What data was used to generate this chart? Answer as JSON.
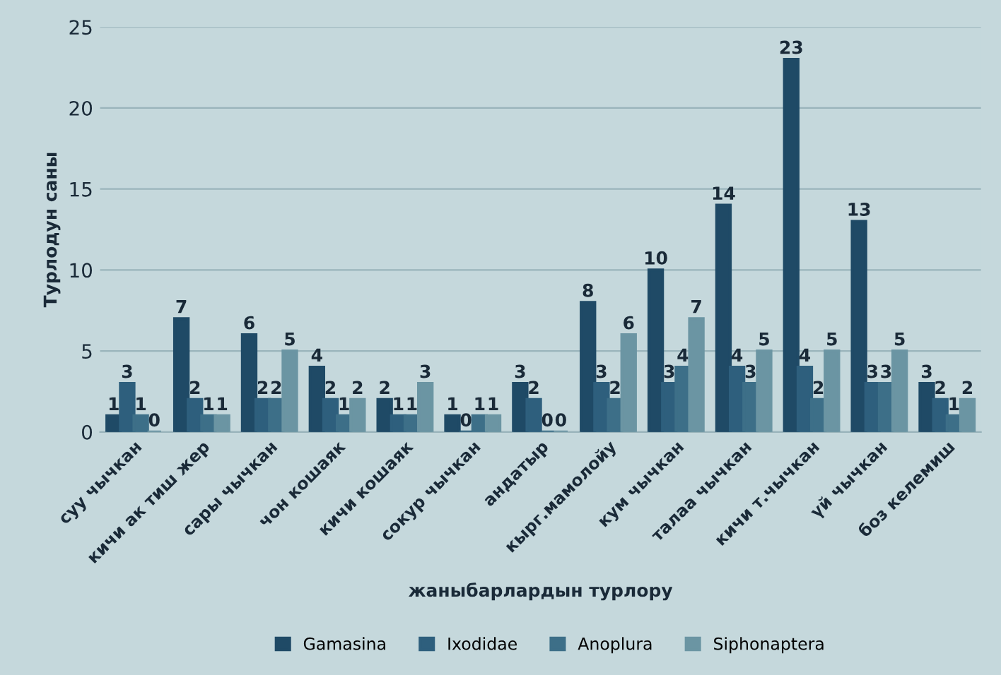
{
  "chart_data": {
    "type": "bar",
    "xlabel": "жаныбарлардын турлору",
    "ylabel": "Турлодун саны",
    "categories": [
      "суу чычкан",
      "кичи ак тиш жер",
      "сары чычкан",
      "чон кошаяк",
      "кичи кошаяк",
      "сокур чычкан",
      "андатыр",
      "кырг.мамолойу",
      "кум чычкан",
      "талаа чычкан",
      "кичи т.чычкан",
      "үй чычкан",
      "боз келемиш"
    ],
    "series": [
      {
        "name": "Gamasina",
        "color": "#1f4a66",
        "values": [
          1,
          7,
          6,
          4,
          2,
          1,
          3,
          8,
          10,
          14,
          23,
          13,
          3
        ]
      },
      {
        "name": "Ixodidae",
        "color": "#2e5f7d",
        "values": [
          3,
          2,
          2,
          2,
          1,
          0,
          2,
          3,
          3,
          4,
          4,
          3,
          2
        ]
      },
      {
        "name": "Anoplura",
        "color": "#3d6f88",
        "values": [
          1,
          1,
          2,
          1,
          1,
          1,
          0,
          2,
          4,
          3,
          2,
          3,
          1
        ]
      },
      {
        "name": "Siphonaptera",
        "color": "#6b95a3",
        "values": [
          0,
          1,
          5,
          2,
          3,
          1,
          0,
          6,
          7,
          5,
          5,
          5,
          2
        ]
      }
    ],
    "ylim": [
      0,
      25
    ],
    "yticks": [
      0,
      5,
      10,
      15,
      20,
      25
    ],
    "grid": "y",
    "legend": "bottom",
    "data_labels": true
  }
}
